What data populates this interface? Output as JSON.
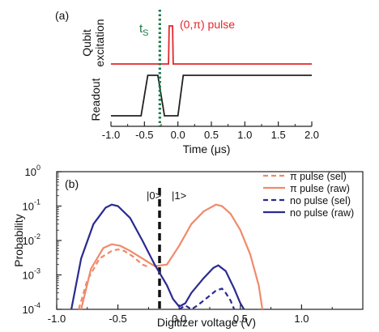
{
  "chart_data": [
    {
      "type": "line",
      "panel_label": "(a)",
      "xlabel": "Time (μs)",
      "xlim": [
        -1.0,
        2.0
      ],
      "x_ticks": [
        "-1.0",
        "-0.5",
        "0.0",
        "0.5",
        "1.0",
        "1.5",
        "2.0"
      ],
      "y_labels": {
        "qubit_line1": "Qubit",
        "qubit_line2": "excitation",
        "readout": "Readout"
      },
      "annotations": {
        "ts": "t",
        "ts_sub": "S",
        "ts_time": -0.27,
        "pulse_label": "(0,π) pulse"
      },
      "series": [
        {
          "id": "qubit",
          "color": "#e3262b",
          "x": [
            -1.0,
            -0.14,
            -0.13,
            -0.11,
            -0.08,
            -0.07,
            2.0
          ],
          "y": [
            0,
            0,
            1,
            1,
            1,
            0,
            0
          ]
        },
        {
          "id": "readout",
          "color": "#222222",
          "x": [
            -1.0,
            -0.55,
            -0.45,
            -0.3,
            -0.2,
            0.0,
            0.08,
            2.0
          ],
          "y": [
            0,
            0,
            1,
            1,
            0,
            0,
            1,
            1
          ]
        }
      ]
    },
    {
      "type": "line",
      "panel_label": "(b)",
      "xlabel": "Digitizer voltage (V)",
      "ylabel": "Probability",
      "xlim": [
        -1.0,
        1.5
      ],
      "ylim": [
        0.0001,
        1
      ],
      "yscale": "log",
      "x_ticks": [
        "-1.0",
        "-0.5",
        "0.0",
        "0.5",
        "1.0"
      ],
      "y_ticks": [
        {
          "base": "10",
          "exp": "0"
        },
        {
          "base": "10",
          "exp": "-1"
        },
        {
          "base": "10",
          "exp": "-2"
        },
        {
          "base": "10",
          "exp": "-3"
        },
        {
          "base": "10",
          "exp": "-4"
        }
      ],
      "threshold_x": -0.16,
      "state_labels": [
        "|0>",
        "|1>"
      ],
      "legend_position": "top-right",
      "series": [
        {
          "name": "π pulse (sel)",
          "color": "#f08a6a",
          "dash": true,
          "x": [
            -0.82,
            -0.75,
            -0.65,
            -0.55,
            -0.5,
            -0.45,
            -0.38,
            -0.3,
            -0.25
          ],
          "y": [
            0.0001,
            0.0007,
            0.003,
            0.005,
            0.0055,
            0.005,
            0.0035,
            0.002,
            0.0017
          ]
        },
        {
          "name": "π pulse (raw)",
          "color": "#f08a6a",
          "dash": false,
          "x": [
            -0.8,
            -0.72,
            -0.62,
            -0.55,
            -0.48,
            -0.4,
            -0.3,
            -0.2,
            -0.1,
            0.0,
            0.1,
            0.2,
            0.3,
            0.35,
            0.42,
            0.5,
            0.58,
            0.65,
            0.68
          ],
          "y": [
            0.0001,
            0.0015,
            0.006,
            0.0078,
            0.007,
            0.005,
            0.003,
            0.0018,
            0.002,
            0.007,
            0.03,
            0.07,
            0.11,
            0.1,
            0.06,
            0.02,
            0.004,
            0.0005,
            0.0001
          ]
        },
        {
          "name": "no pulse (sel)",
          "color": "#2a2a90",
          "dash": true,
          "x": [
            0.0,
            0.05,
            0.1,
            0.15,
            0.2,
            0.25,
            0.3,
            0.35,
            0.38,
            0.42,
            0.45
          ],
          "y": [
            0.0001,
            0.00013,
            0.0001,
            0.00013,
            0.00018,
            0.00025,
            0.00035,
            0.0004,
            0.0003,
            0.00018,
            0.0001
          ]
        },
        {
          "name": "no pulse (raw)",
          "color": "#2a2a90",
          "dash": false,
          "x": [
            -0.88,
            -0.8,
            -0.7,
            -0.6,
            -0.55,
            -0.5,
            -0.4,
            -0.3,
            -0.2,
            -0.1,
            -0.05,
            0.0,
            0.05,
            0.1,
            0.2,
            0.28,
            0.32,
            0.38,
            0.45,
            0.5,
            0.53
          ],
          "y": [
            0.0001,
            0.003,
            0.03,
            0.09,
            0.11,
            0.1,
            0.045,
            0.01,
            0.002,
            0.0005,
            0.0002,
            0.00012,
            0.00015,
            0.0003,
            0.0008,
            0.0016,
            0.0019,
            0.0013,
            0.0004,
            0.00015,
            0.0001
          ]
        }
      ]
    }
  ]
}
